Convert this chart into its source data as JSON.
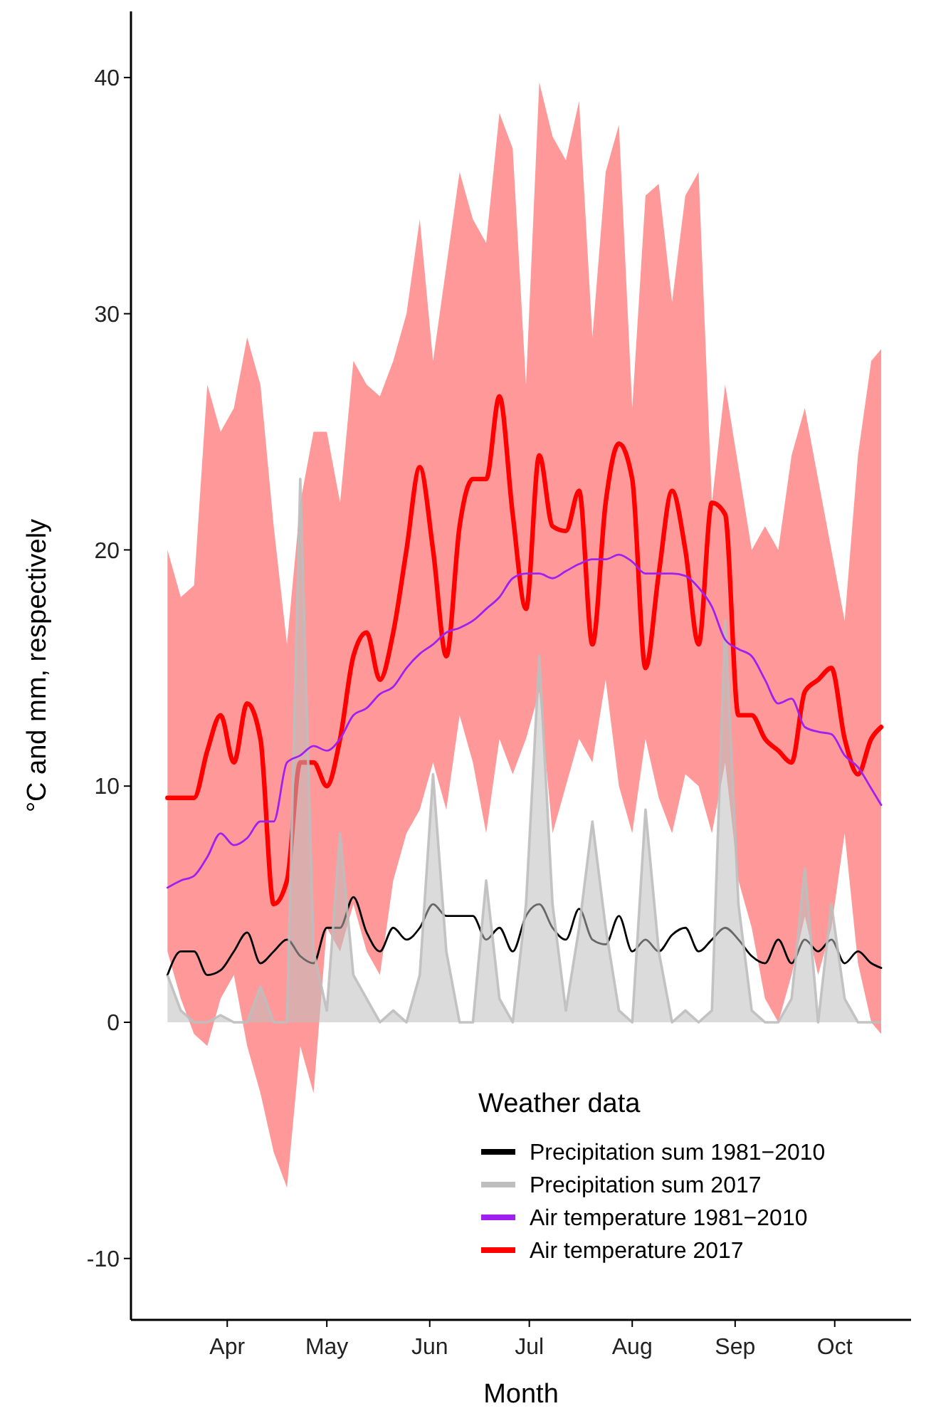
{
  "chart_data": {
    "type": "line",
    "xlabel": "Month",
    "ylabel": "°C and mm, respectively",
    "legend_title": "Weather data",
    "legend": "bottom right",
    "grid": false,
    "xlim": [
      "2017-03-03",
      "2017-10-24"
    ],
    "ylim": [
      -12.6,
      42.8
    ],
    "yticks": [
      -10,
      0,
      10,
      20,
      30,
      40
    ],
    "xticks": [
      {
        "value": "2017-04-01",
        "label": "Apr"
      },
      {
        "value": "2017-05-01",
        "label": "May"
      },
      {
        "value": "2017-06-01",
        "label": "Jun"
      },
      {
        "value": "2017-07-01",
        "label": "Jul"
      },
      {
        "value": "2017-08-01",
        "label": "Aug"
      },
      {
        "value": "2017-09-01",
        "label": "Sep"
      },
      {
        "value": "2017-10-01",
        "label": "Oct"
      }
    ],
    "x": [
      "2017-03-14",
      "2017-03-18",
      "2017-03-22",
      "2017-03-26",
      "2017-03-30",
      "2017-04-03",
      "2017-04-07",
      "2017-04-11",
      "2017-04-15",
      "2017-04-19",
      "2017-04-23",
      "2017-04-27",
      "2017-05-01",
      "2017-05-05",
      "2017-05-09",
      "2017-05-13",
      "2017-05-17",
      "2017-05-21",
      "2017-05-25",
      "2017-05-29",
      "2017-06-02",
      "2017-06-06",
      "2017-06-10",
      "2017-06-14",
      "2017-06-18",
      "2017-06-22",
      "2017-06-26",
      "2017-06-30",
      "2017-07-04",
      "2017-07-08",
      "2017-07-12",
      "2017-07-16",
      "2017-07-20",
      "2017-07-24",
      "2017-07-28",
      "2017-08-01",
      "2017-08-05",
      "2017-08-09",
      "2017-08-13",
      "2017-08-17",
      "2017-08-21",
      "2017-08-25",
      "2017-08-29",
      "2017-09-02",
      "2017-09-06",
      "2017-09-10",
      "2017-09-14",
      "2017-09-18",
      "2017-09-22",
      "2017-09-26",
      "2017-09-30",
      "2017-10-04",
      "2017-10-08",
      "2017-10-12",
      "2017-10-15"
    ],
    "series": [
      {
        "name": "Precipitation sum 1981−2010",
        "color": "#000000",
        "values": [
          2,
          3,
          3,
          2,
          2.2,
          3,
          3.8,
          2.5,
          3,
          3.5,
          2.8,
          2.5,
          4,
          4,
          5.3,
          3.8,
          3,
          4,
          3.5,
          4,
          5,
          4.5,
          4.5,
          4.5,
          3.5,
          4,
          3,
          4.5,
          5,
          4,
          3.5,
          4.8,
          3.5,
          3.3,
          4.5,
          3,
          3.5,
          3,
          3.7,
          4,
          3,
          3.5,
          4,
          3.5,
          2.8,
          2.5,
          3.5,
          2.5,
          3.5,
          3,
          3.5,
          2.5,
          3,
          2.5,
          2.3
        ]
      },
      {
        "name": "Precipitation sum 2017",
        "type": "area",
        "color": "#bebebe",
        "values": [
          2,
          0.5,
          0,
          0,
          0.3,
          0,
          0,
          1.5,
          0,
          0,
          23,
          3,
          0.5,
          8,
          2,
          1,
          0,
          0.5,
          0,
          2,
          10.5,
          3,
          0,
          0,
          6,
          1,
          0,
          5,
          15.5,
          5,
          0.5,
          4,
          8.5,
          4,
          0.5,
          0,
          9,
          3,
          0,
          0.5,
          0,
          0.5,
          17,
          5,
          0.5,
          0,
          0,
          1,
          6.5,
          0,
          5,
          1,
          0,
          0,
          0
        ]
      },
      {
        "name": "Air temperature 1981−2010",
        "color": "#a020f0",
        "values": [
          5.7,
          6,
          6.2,
          7,
          8,
          7.5,
          7.8,
          8.5,
          8.5,
          11,
          11.3,
          11.7,
          11.5,
          12,
          13,
          13.3,
          13.9,
          14.2,
          15,
          15.6,
          16,
          16.5,
          16.7,
          17,
          17.5,
          18,
          18.8,
          19,
          19,
          18.8,
          19.1,
          19.4,
          19.6,
          19.6,
          19.8,
          19.5,
          19,
          19,
          19,
          18.9,
          18.4,
          17.6,
          16.2,
          15.8,
          15.5,
          14.5,
          13.5,
          13.7,
          12.5,
          12.3,
          12.2,
          11.3,
          10.8,
          9.9,
          9.2
        ]
      },
      {
        "name": "Air temperature 2017",
        "color": "#ff0000",
        "values": [
          9.5,
          9.5,
          9.5,
          11.5,
          13,
          11,
          13.5,
          12,
          5,
          6,
          11,
          11,
          10,
          12,
          15.5,
          16.5,
          14.5,
          16.5,
          20,
          23.5,
          20,
          15.5,
          21,
          23,
          23,
          26.5,
          21.5,
          17.5,
          24,
          21,
          20.8,
          22.5,
          16,
          22,
          24.5,
          23,
          15,
          19,
          22.5,
          20,
          16,
          22,
          21.5,
          13,
          13,
          12,
          11.5,
          11,
          14,
          14.5,
          15,
          12,
          10.5,
          12,
          12.5
        ],
        "lower": [
          3,
          1,
          -0.5,
          -1,
          1,
          2,
          -1,
          -3,
          -5.5,
          -7,
          -1,
          -3,
          4,
          3,
          5,
          3,
          2,
          6,
          8,
          9,
          11,
          9,
          13,
          11,
          8,
          12,
          10.5,
          12,
          14,
          8,
          10,
          12,
          11,
          14.5,
          10,
          8,
          12,
          9.5,
          8,
          10.5,
          10,
          8,
          11,
          6,
          4,
          1,
          0,
          2,
          4.5,
          2,
          4,
          8,
          2.5,
          0,
          -0.5
        ],
        "upper": [
          20,
          18,
          18.5,
          27,
          25,
          26,
          29,
          27,
          21,
          16,
          22,
          25,
          25,
          22,
          28,
          27,
          26.5,
          28,
          30,
          34,
          28,
          32,
          36,
          34,
          33,
          38.5,
          37,
          27,
          39.8,
          37.5,
          36.5,
          39,
          29,
          36,
          38,
          26,
          35,
          35.5,
          30.5,
          35,
          36,
          22,
          27,
          23.5,
          20,
          21,
          20,
          24,
          26,
          23,
          20,
          17,
          24,
          28,
          28.5
        ]
      }
    ]
  }
}
